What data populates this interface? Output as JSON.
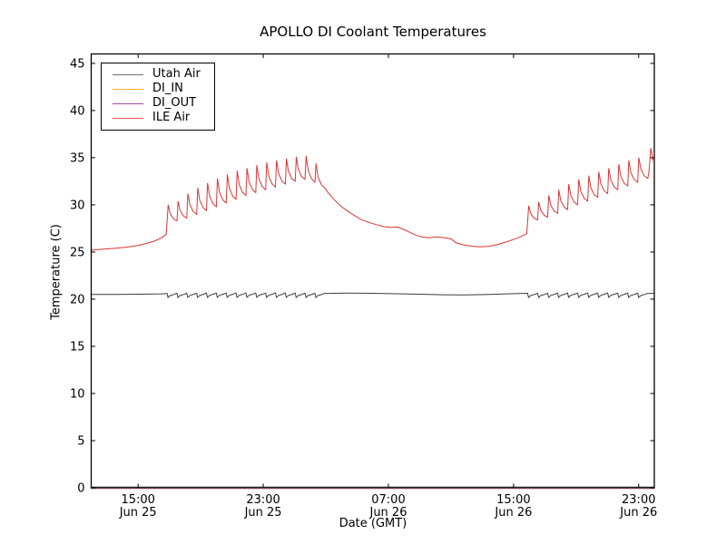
{
  "chart_data": {
    "type": "line",
    "title": "APOLLO DI Coolant Temperatures",
    "xlabel": "Date (GMT)",
    "ylabel": "Temperature (C)",
    "ylim": [
      0,
      46
    ],
    "t_range": [
      0,
      36
    ],
    "t_epoch": "hours since Jun 25 12:00 GMT",
    "grid": false,
    "legend_position": "upper left",
    "yticks": [
      0,
      5,
      10,
      15,
      20,
      25,
      30,
      35,
      40,
      45
    ],
    "xticks": [
      {
        "t": 3,
        "time": "15:00",
        "date": "Jun 25"
      },
      {
        "t": 11,
        "time": "23:00",
        "date": "Jun 25"
      },
      {
        "t": 19,
        "time": "07:00",
        "date": "Jun 26"
      },
      {
        "t": 27,
        "time": "15:00",
        "date": "Jun 26"
      },
      {
        "t": 35,
        "time": "23:00",
        "date": "Jun 26"
      }
    ],
    "axis_color": "#000000",
    "bottom_spine_overlap_color": "#74424a",
    "series": [
      {
        "name": "Utah Air",
        "color": "#3c3c3c",
        "legend_color": "#6e6e6e",
        "segments": [
          {
            "points": [
              [
                0,
                20.5
              ],
              [
                1.5,
                20.5
              ],
              [
                3.0,
                20.52
              ],
              [
                4.5,
                20.56
              ],
              [
                4.82,
                20.6
              ]
            ]
          },
          {
            "spikes": {
              "mode": "down",
              "start": 4.85,
              "period": 0.63,
              "peaks": [
                20.62,
                20.62,
                20.63,
                20.63,
                20.64,
                20.64,
                20.65,
                20.65,
                20.65,
                20.65,
                20.65,
                20.64,
                20.64,
                20.63,
                20.63,
                20.62
              ],
              "dips": [
                20.18,
                20.18,
                20.19,
                20.19,
                20.2,
                20.2,
                20.2,
                20.2,
                20.2,
                20.2,
                20.2,
                20.19,
                20.19,
                20.18,
                20.18,
                20.18
              ]
            }
          },
          {
            "points": [
              [
                15.0,
                20.6
              ],
              [
                16.5,
                20.65
              ],
              [
                18.0,
                20.62
              ],
              [
                19.5,
                20.57
              ],
              [
                21.0,
                20.52
              ],
              [
                22.5,
                20.47
              ],
              [
                24.0,
                20.45
              ],
              [
                25.5,
                20.5
              ],
              [
                26.8,
                20.57
              ],
              [
                27.85,
                20.62
              ]
            ]
          },
          {
            "spikes": {
              "mode": "down",
              "start": 27.9,
              "period": 0.64,
              "peaks": [
                20.62,
                20.62,
                20.63,
                20.63,
                20.64,
                20.64,
                20.64,
                20.64,
                20.64,
                20.63,
                20.63,
                20.62
              ],
              "dips": [
                20.18,
                20.18,
                20.19,
                20.19,
                20.2,
                20.2,
                20.2,
                20.2,
                20.2,
                20.19,
                20.19,
                20.18
              ]
            }
          },
          {
            "points": [
              [
                35.62,
                20.6
              ],
              [
                35.96,
                20.62
              ]
            ]
          }
        ]
      },
      {
        "name": "DI_IN",
        "color": "#ffa500",
        "legend_color": "#ffb02e",
        "segments": [
          {
            "points": [
              [
                0,
                0
              ],
              [
                36,
                0
              ]
            ]
          }
        ]
      },
      {
        "name": "DI_OUT",
        "color": "#993399",
        "legend_color": "#9a4f9e",
        "segments": [
          {
            "points": [
              [
                0,
                0
              ],
              [
                36,
                0
              ]
            ]
          }
        ]
      },
      {
        "name": "ILE Air",
        "color": "#dd3333",
        "legend_color": "#f25555",
        "segments": [
          {
            "points": [
              [
                0,
                25.2
              ],
              [
                0.8,
                25.3
              ],
              [
                1.6,
                25.4
              ],
              [
                2.4,
                25.55
              ],
              [
                3.0,
                25.7
              ],
              [
                3.6,
                25.95
              ],
              [
                4.1,
                26.2
              ],
              [
                4.5,
                26.5
              ],
              [
                4.8,
                26.9
              ]
            ]
          },
          {
            "spikes": {
              "mode": "up",
              "start": 4.85,
              "period": 0.63,
              "peaks": [
                30.0,
                30.4,
                31.2,
                31.8,
                32.3,
                32.8,
                33.2,
                33.6,
                33.9,
                34.2,
                34.5,
                34.7,
                34.9,
                35.1,
                35.2,
                34.4
              ],
              "dips": [
                28.3,
                28.6,
                29.0,
                29.4,
                29.8,
                30.2,
                30.6,
                31.0,
                31.3,
                31.6,
                31.9,
                32.2,
                32.5,
                32.7,
                32.4,
                31.8
              ]
            }
          },
          {
            "points": [
              [
                15.1,
                31.4
              ],
              [
                15.5,
                30.6
              ],
              [
                16.0,
                29.8
              ],
              [
                16.6,
                29.1
              ],
              [
                17.3,
                28.4
              ],
              [
                18.0,
                28.0
              ],
              [
                18.7,
                27.7
              ],
              [
                19.2,
                27.6
              ],
              [
                19.6,
                27.65
              ],
              [
                20.1,
                27.3
              ],
              [
                20.6,
                26.9
              ],
              [
                21.1,
                26.6
              ],
              [
                21.6,
                26.5
              ],
              [
                22.1,
                26.6
              ],
              [
                22.6,
                26.5
              ],
              [
                23.0,
                26.4
              ],
              [
                23.3,
                26.0
              ],
              [
                23.7,
                25.8
              ],
              [
                24.2,
                25.65
              ],
              [
                24.8,
                25.55
              ],
              [
                25.4,
                25.6
              ],
              [
                26.0,
                25.8
              ],
              [
                26.6,
                26.1
              ],
              [
                27.3,
                26.5
              ],
              [
                27.85,
                26.95
              ]
            ]
          },
          {
            "spikes": {
              "mode": "up",
              "start": 27.9,
              "period": 0.64,
              "peaks": [
                29.9,
                30.3,
                31.0,
                31.6,
                32.2,
                32.7,
                33.1,
                33.5,
                33.9,
                34.3,
                34.7,
                35.0
              ],
              "dips": [
                28.4,
                28.7,
                29.1,
                29.5,
                30.0,
                30.4,
                30.8,
                31.2,
                31.6,
                32.0,
                32.4,
                32.8
              ]
            }
          },
          {
            "points": [
              [
                35.66,
                33.5
              ],
              [
                35.78,
                36.0
              ],
              [
                35.92,
                34.7
              ]
            ]
          }
        ]
      }
    ]
  }
}
